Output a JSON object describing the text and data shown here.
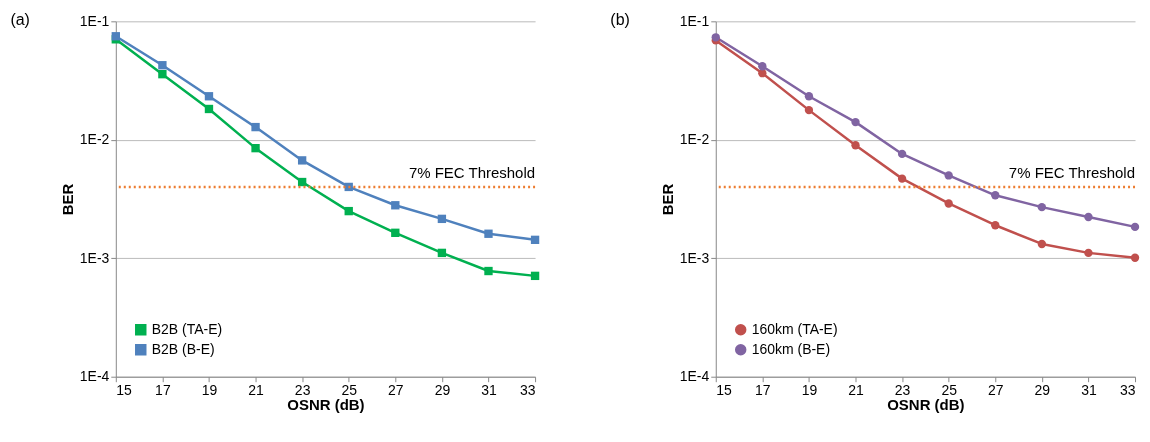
{
  "chart_data": [
    {
      "type": "line",
      "title": "(a)",
      "xlabel": "OSNR (dB)",
      "ylabel": "BER",
      "x": [
        15,
        17,
        19,
        21,
        23,
        25,
        27,
        29,
        31,
        33
      ],
      "series": [
        {
          "name": "B2B (TA-E)",
          "color": "#00b050",
          "marker": "square",
          "values": [
            0.0705,
            0.0358,
            0.0182,
            0.0085,
            0.0044,
            0.0025,
            0.00164,
            0.00111,
            0.00078,
            0.00071
          ]
        },
        {
          "name": "B2B (B-E)",
          "color": "#4f81bd",
          "marker": "square",
          "values": [
            0.0748,
            0.0426,
            0.0233,
            0.0128,
            0.0067,
            0.004,
            0.0028,
            0.00215,
            0.00161,
            0.00143
          ]
        }
      ],
      "xlim": [
        15,
        33
      ],
      "xticks": [
        15,
        17,
        19,
        21,
        23,
        25,
        27,
        29,
        31,
        33
      ],
      "ylim": [
        0.0001,
        0.1
      ],
      "log": "y",
      "yticks": [
        {
          "value": 0.0001,
          "label": "1E-4"
        },
        {
          "value": 0.001,
          "label": "1E-3"
        },
        {
          "value": 0.01,
          "label": "1E-2"
        },
        {
          "value": 0.1,
          "label": "1E-1"
        }
      ],
      "ref_lines": [
        {
          "axis": "y",
          "value": 0.004,
          "label": "7% FEC Threshold",
          "color": "#ed7d31",
          "line_style": "dotted"
        }
      ],
      "grid": "y",
      "legend": "bottom left",
      "line_style": "solid"
    },
    {
      "type": "line",
      "title": "(b)",
      "xlabel": "OSNR (dB)",
      "ylabel": "BER",
      "x": [
        15,
        17,
        19,
        21,
        23,
        25,
        27,
        29,
        31,
        33
      ],
      "series": [
        {
          "name": "160km (TA-E)",
          "color": "#c0504d",
          "marker": "circle",
          "values": [
            0.069,
            0.0365,
            0.0178,
            0.009,
            0.0047,
            0.0029,
            0.0019,
            0.00132,
            0.00111,
            0.00101
          ]
        },
        {
          "name": "160km (B-E)",
          "color": "#8064a2",
          "marker": "circle",
          "values": [
            0.0733,
            0.0418,
            0.0233,
            0.0141,
            0.0076,
            0.005,
            0.0034,
            0.0027,
            0.00223,
            0.00184
          ]
        }
      ],
      "xlim": [
        15,
        33
      ],
      "xticks": [
        15,
        17,
        19,
        21,
        23,
        25,
        27,
        29,
        31,
        33
      ],
      "ylim": [
        0.0001,
        0.1
      ],
      "log": "y",
      "yticks": [
        {
          "value": 0.0001,
          "label": "1E-4"
        },
        {
          "value": 0.001,
          "label": "1E-3"
        },
        {
          "value": 0.01,
          "label": "1E-2"
        },
        {
          "value": 0.1,
          "label": "1E-1"
        }
      ],
      "ref_lines": [
        {
          "axis": "y",
          "value": 0.004,
          "label": "7% FEC Threshold",
          "color": "#ed7d31",
          "line_style": "dotted"
        }
      ],
      "grid": "y",
      "legend": "bottom left",
      "line_style": "solid"
    }
  ]
}
